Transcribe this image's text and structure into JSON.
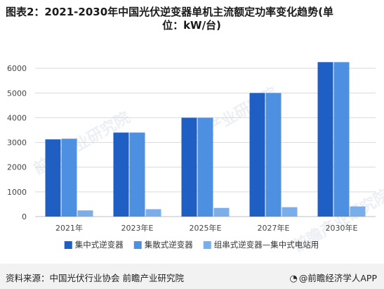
{
  "title": {
    "line1": "图表2：2021-2030年中国光伏逆变器单机主流额定功率变化趋势(单",
    "line2": "位：kW/台)"
  },
  "footer": {
    "source": "资料来源：中国光伏行业协会 前瞻产业研究院",
    "brand_icon": "weibo-style-icon",
    "brand_text": "@前瞻经济学人APP"
  },
  "watermark": {
    "text": "前瞻产业研究院",
    "sub": "QIANZHAN INDUSTRY RESEARCH INSTITUTE"
  },
  "colors": {
    "series1": "#1f5fc4",
    "series2": "#4d8fe0",
    "series3": "#7aaeea",
    "grid": "#d9d9d9",
    "axis_text": "#444444"
  },
  "chart_data": {
    "type": "bar",
    "categories": [
      "2021年",
      "2023年E",
      "2025年E",
      "2027年E",
      "2030年E"
    ],
    "series": [
      {
        "name": "集中式逆变器",
        "values": [
          3125,
          3400,
          4000,
          5000,
          6250
        ]
      },
      {
        "name": "集散式逆变器",
        "values": [
          3150,
          3400,
          4000,
          5000,
          6250
        ]
      },
      {
        "name": "组串式逆变器—集中式电站用",
        "values": [
          250,
          300,
          350,
          380,
          410
        ]
      }
    ],
    "ylim": [
      0,
      7000
    ],
    "yticks": [
      0,
      1000,
      2000,
      3000,
      4000,
      5000,
      6000
    ],
    "grid": true,
    "legend_position": "bottom"
  }
}
